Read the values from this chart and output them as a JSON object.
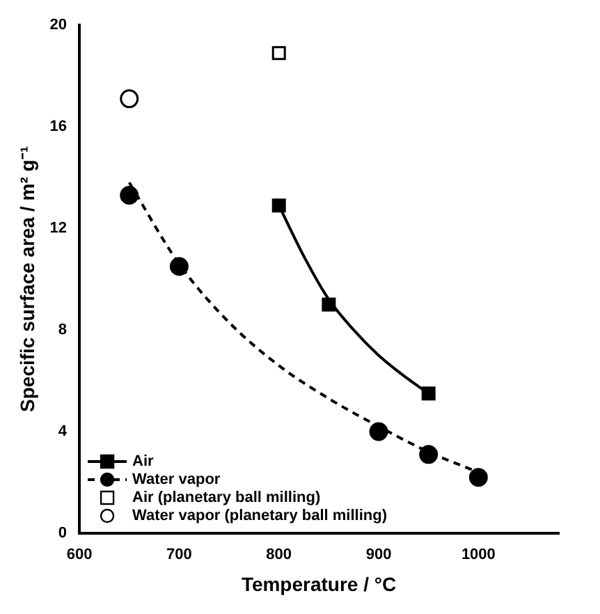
{
  "chart_data": {
    "type": "scatter",
    "xlabel": "Temperature / °C",
    "ylabel": "Specific surface area / m² g⁻¹",
    "xlim": [
      600,
      1080
    ],
    "xticks": [
      600,
      700,
      800,
      900,
      1000
    ],
    "ylim": [
      0,
      20
    ],
    "yticks": [
      0,
      4,
      8,
      12,
      16,
      20
    ],
    "grid": false,
    "legend": "bottom left",
    "series": [
      {
        "name": "Air",
        "marker": "square",
        "color": "#000000",
        "x": [
          800,
          850,
          950
        ],
        "values": [
          12.9,
          9.0,
          5.5
        ]
      },
      {
        "name": "Water vapor",
        "marker": "circle",
        "color": "#000000",
        "x": [
          650,
          700,
          900,
          950,
          1000
        ],
        "values": [
          13.3,
          10.5,
          4.0,
          3.1,
          2.2
        ]
      },
      {
        "name": "Air (planetary ball milling)",
        "marker": "square",
        "color": "#ffffff",
        "x": [
          800
        ],
        "values": [
          18.9
        ]
      },
      {
        "name": "Water vapor (planetary ball milling)",
        "marker": "circle",
        "color": "#ffffff",
        "x": [
          650
        ],
        "values": [
          17.1
        ]
      },
      {
        "type": "line",
        "line_style": "solid",
        "color": "#000000",
        "x": [
          800,
          825,
          850,
          875,
          900,
          925,
          950
        ],
        "values": [
          12.9,
          10.9,
          9.2,
          8.0,
          7.0,
          6.2,
          5.5
        ]
      },
      {
        "type": "line",
        "line_style": "dashed",
        "color": "#000000",
        "x": [
          650,
          700,
          750,
          800,
          850,
          900,
          950,
          1000
        ],
        "values": [
          13.8,
          10.6,
          8.3,
          6.6,
          5.3,
          4.2,
          3.2,
          2.4
        ]
      }
    ]
  }
}
